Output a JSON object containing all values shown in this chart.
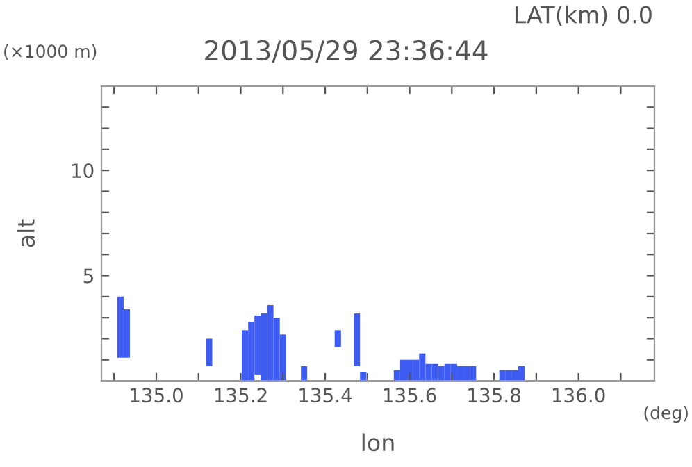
{
  "chart_data": {
    "type": "bar",
    "title": "2013/05/29 23:36:44",
    "subtitle": "LAT(km) 0.0",
    "xlabel": "lon",
    "ylabel": "alt",
    "annotations": [
      "(×1000 m)",
      "(deg)"
    ],
    "x": [
      134.915,
      134.93,
      135.125,
      135.21,
      135.225,
      135.24,
      135.255,
      135.27,
      135.285,
      135.3,
      135.35,
      135.43,
      135.475,
      135.49,
      135.57,
      135.585,
      135.6,
      135.615,
      135.63,
      135.645,
      135.66,
      135.675,
      135.69,
      135.705,
      135.72,
      135.735,
      135.75,
      135.82,
      135.835,
      135.85,
      135.865
    ],
    "base": [
      1.1,
      1.1,
      0.7,
      0,
      0,
      0.3,
      0,
      0,
      0,
      0,
      0,
      1.6,
      0.7,
      0,
      0,
      0,
      0,
      0,
      0,
      0,
      0,
      0,
      0,
      0,
      0,
      0,
      0,
      0,
      0,
      0,
      0
    ],
    "values": [
      2.9,
      2.3,
      1.3,
      2.4,
      2.8,
      2.8,
      3.2,
      3.6,
      3.0,
      2.2,
      0.7,
      0.8,
      2.5,
      0.4,
      0.5,
      1.0,
      1.0,
      1.0,
      1.3,
      0.8,
      0.8,
      0.7,
      0.8,
      0.8,
      0.7,
      0.7,
      0.7,
      0.5,
      0.5,
      0.5,
      0.7
    ],
    "color": "#3f5cf2",
    "xlim": [
      134.87,
      136.18
    ],
    "ylim": [
      0,
      14
    ],
    "xticks": [
      {
        "value": 134.9,
        "label": null
      },
      {
        "value": 135.0,
        "label": "135.0"
      },
      {
        "value": 135.1,
        "label": null
      },
      135.2,
      {
        "value": 135.3,
        "label": null
      },
      135.4,
      {
        "value": 135.5,
        "label": null
      },
      135.6,
      {
        "value": 135.7,
        "label": null
      },
      135.8,
      {
        "value": 135.9,
        "label": null
      },
      {
        "value": 136.0,
        "label": "136.0"
      },
      {
        "value": 136.1,
        "label": null
      }
    ],
    "yticks": [
      {
        "value": 1,
        "label": null
      },
      {
        "value": 2,
        "label": null
      },
      {
        "value": 3,
        "label": null
      },
      {
        "value": 4,
        "label": null
      },
      5,
      {
        "value": 6,
        "label": null
      },
      {
        "value": 7,
        "label": null
      },
      {
        "value": 8,
        "label": null
      },
      {
        "value": 9,
        "label": null
      },
      10,
      {
        "value": 11,
        "label": null
      },
      {
        "value": 12,
        "label": null
      },
      {
        "value": 13,
        "label": null
      }
    ],
    "grid": false,
    "legend": false
  }
}
